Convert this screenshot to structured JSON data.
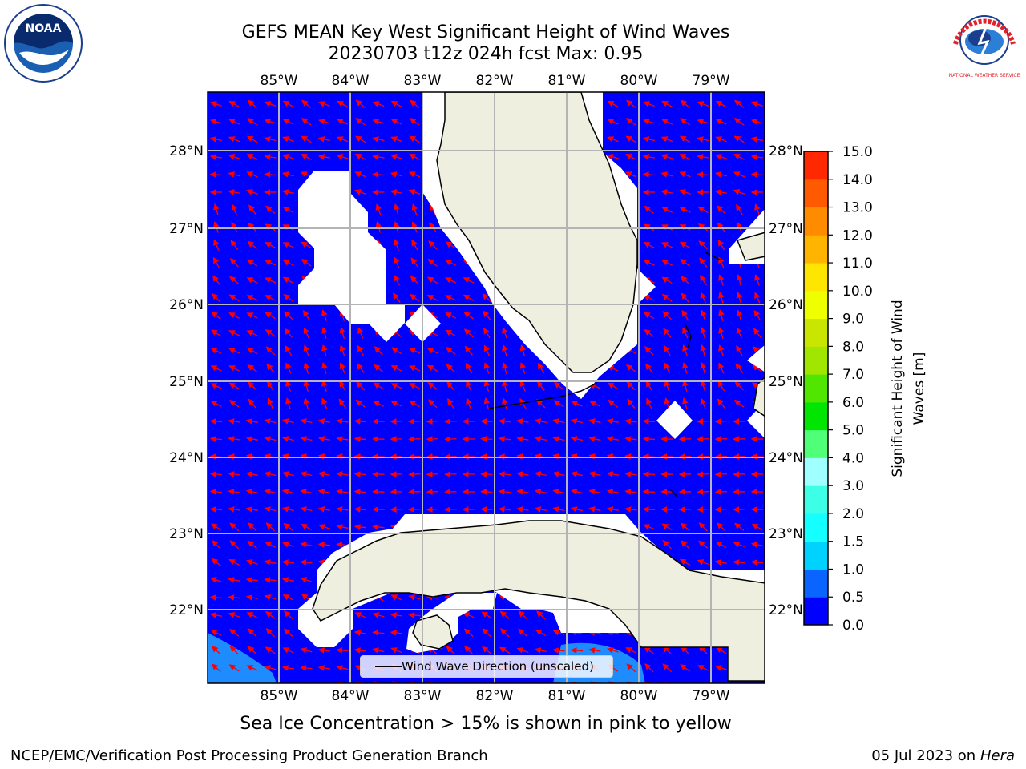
{
  "title_line1": "GEFS MEAN Key West Significant Height of Wind Waves",
  "title_line2": "20230703 t12z 024h fcst   Max: 0.95",
  "subtitle": "Sea Ice Concentration > 15% is shown in pink to yellow",
  "credit": "NCEP/EMC/Verification Post Processing Product Generation Branch",
  "date": "05 Jul 2023 on",
  "host": "Hera",
  "legend": {
    "label": "Wind Wave Direction (unscaled)"
  },
  "logos": {
    "left": "NOAA",
    "right": "NATIONAL WEATHER SERVICE"
  },
  "map": {
    "lon_labels": [
      "85°W",
      "84°W",
      "83°W",
      "82°W",
      "81°W",
      "80°W",
      "79°W"
    ],
    "lat_labels": [
      "28°N",
      "27°N",
      "26°N",
      "25°N",
      "24°N",
      "23°N",
      "22°N"
    ],
    "colors": {
      "ocean": "#0000ff",
      "land": "#efefdf",
      "mask": "#ffffff",
      "arrow": "#ff0000",
      "grid": "#b4b4b4"
    }
  },
  "colorbar": {
    "label_line1": "Significant Height of Wind",
    "label_line2": "Waves [m]",
    "ticks": [
      "0.0",
      "0.5",
      "1.0",
      "1.5",
      "2.0",
      "3.0",
      "4.0",
      "5.0",
      "6.0",
      "7.0",
      "8.0",
      "9.0",
      "10.0",
      "11.0",
      "12.0",
      "13.0",
      "14.0",
      "15.0"
    ],
    "colors": [
      "#0000ff",
      "#0a64ff",
      "#00d2ff",
      "#14ffff",
      "#3cffe6",
      "#a0ffff",
      "#50ff78",
      "#00e600",
      "#50e600",
      "#a0e600",
      "#c8e600",
      "#f0ff00",
      "#ffe600",
      "#ffb400",
      "#ff8c00",
      "#ff5a00",
      "#ff2800"
    ]
  }
}
